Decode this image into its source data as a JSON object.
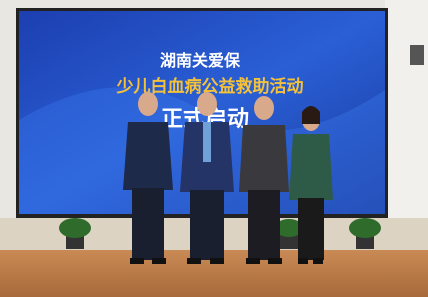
{
  "banner": {
    "line1": "湖南关爱保",
    "line2": "少儿白血病公益救助活动",
    "line3": "正式启动"
  }
}
